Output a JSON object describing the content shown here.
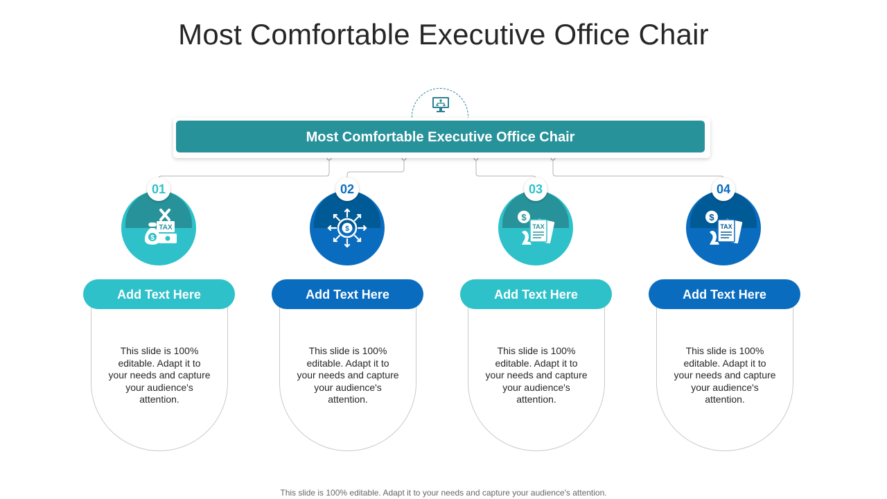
{
  "slide": {
    "title": "Most Comfortable Executive Office Chair",
    "banner_text": "Most Comfortable Executive Office Chair",
    "top_icon": "computer-network-icon",
    "footer_text": "This slide is 100% editable. Adapt it to your needs and capture your audience's attention."
  },
  "colors": {
    "teal": "#2ec1c9",
    "teal_dark": "#27929a",
    "blue": "#0a6cbf",
    "blue_dark": "#005a96",
    "banner": "#27929a"
  },
  "steps": [
    {
      "number": "01",
      "heading": "Add Text Here",
      "icon": "money-bag-tax-icon",
      "body": "This slide is 100% editable. Adapt it to your needs and capture your audience's attention."
    },
    {
      "number": "02",
      "heading": "Add Text Here",
      "icon": "target-dollar-icon",
      "body": "This slide is 100% editable. Adapt it to your needs and capture your audience's attention."
    },
    {
      "number": "03",
      "heading": "Add Text Here",
      "icon": "tax-document-chess-icon",
      "body": "This slide is 100% editable. Adapt it to your needs and capture your audience's attention."
    },
    {
      "number": "04",
      "heading": "Add Text Here",
      "icon": "tax-document-chess-icon",
      "body": "This slide is 100% editable. Adapt it to your needs and capture your audience's attention."
    }
  ]
}
